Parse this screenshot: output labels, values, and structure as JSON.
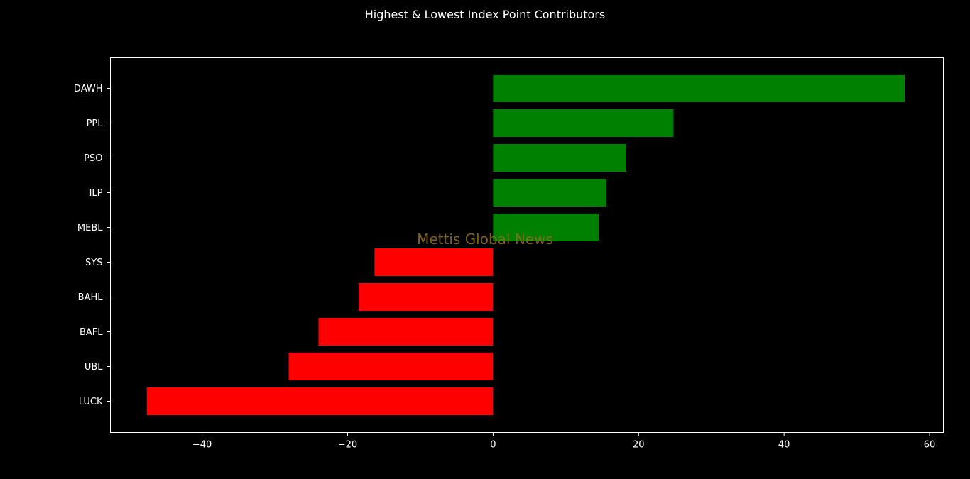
{
  "chart_data": {
    "type": "bar",
    "orientation": "horizontal",
    "title": "Highest & Lowest Index Point Contributors",
    "watermark": "Mettis Global News",
    "categories": [
      "DAWH",
      "PPL",
      "PSO",
      "ILP",
      "MEBL",
      "SYS",
      "BAHL",
      "BAFL",
      "UBL",
      "LUCK"
    ],
    "values": [
      56.6,
      24.8,
      18.3,
      15.6,
      14.5,
      -16.3,
      -18.5,
      -24.0,
      -28.1,
      -47.6
    ],
    "xticks": [
      -40,
      -20,
      0,
      20,
      40,
      60
    ],
    "xlim": [
      -52.6,
      61.9
    ],
    "grid": false,
    "legend": "none",
    "colors": {
      "background": "#000000",
      "positive": "#008000",
      "negative": "#ff0000",
      "text": "#ffffff",
      "axes": "#ffffff",
      "watermark": "#8b6a1e"
    }
  }
}
